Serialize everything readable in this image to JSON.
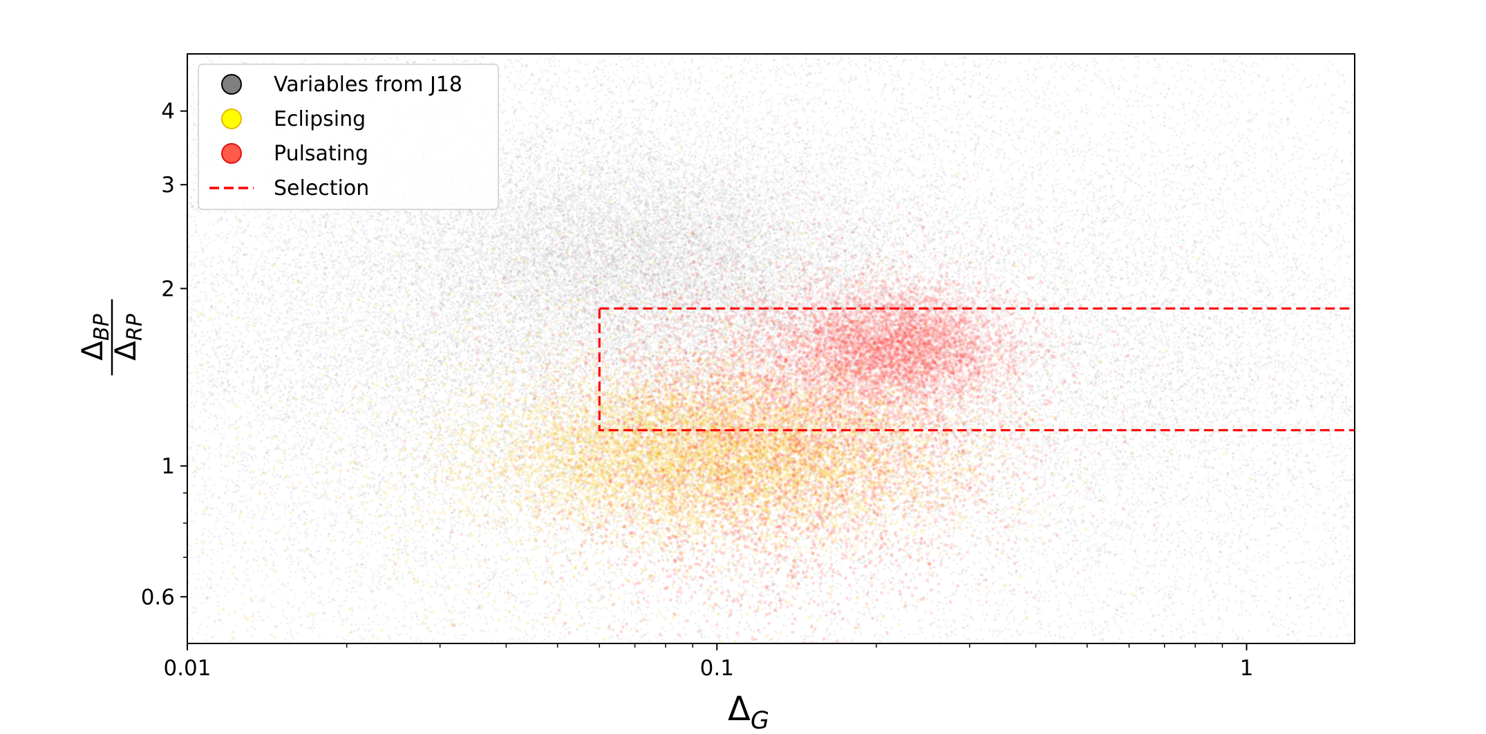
{
  "chart_data": {
    "type": "scatter",
    "title": "",
    "x_scale": "log",
    "y_scale": "log",
    "xlim": [
      0.01,
      1.6
    ],
    "ylim": [
      0.5,
      5.0
    ],
    "x_ticks": [
      {
        "value": 0.01,
        "label": "0.01"
      },
      {
        "value": 0.1,
        "label": "0.1"
      },
      {
        "value": 1,
        "label": "1"
      }
    ],
    "y_ticks": [
      {
        "value": 0.6,
        "label": "0.6"
      },
      {
        "value": 1,
        "label": "1"
      },
      {
        "value": 2,
        "label": "2"
      },
      {
        "value": 3,
        "label": "3"
      },
      {
        "value": 4,
        "label": "4"
      }
    ],
    "axis_labels": {
      "x_base": "Δ",
      "x_sub": "G",
      "y_num_base": "Δ",
      "y_num_sub": "BP",
      "y_den_base": "Δ",
      "y_den_sub": "RP"
    },
    "legend_position": "top-left",
    "legend": [
      {
        "label": "Variables from J18",
        "kind": "marker",
        "color": "#7f7f7f",
        "edge": "#000000"
      },
      {
        "label": "Eclipsing",
        "kind": "marker",
        "color": "#ffff00",
        "edge": "#e6b800"
      },
      {
        "label": "Pulsating",
        "kind": "marker",
        "color": "#ff5a4a",
        "edge": "#e01010"
      },
      {
        "label": "Selection",
        "kind": "dashed-line",
        "color": "#ff0000"
      }
    ],
    "selection_box": {
      "x_min": 0.06,
      "x_max": 1.6,
      "y_min": 1.15,
      "y_max": 1.85,
      "color": "#ff0000"
    },
    "series": [
      {
        "name": "Variables from J18",
        "color": "#555555",
        "clusters": [
          {
            "x": 0.075,
            "y": 2.3,
            "sx": 0.25,
            "sy": 0.1,
            "n": 16000,
            "weight": 0.55
          },
          {
            "x": 0.05,
            "y": 1.7,
            "sx": 0.45,
            "sy": 0.22,
            "n": 20000,
            "weight": 0.75
          },
          {
            "x": 0.6,
            "y": 1.5,
            "sx": 0.3,
            "sy": 0.18,
            "n": 7000,
            "weight": 0.7
          },
          {
            "x": 0.15,
            "y": 1.4,
            "sx": 0.7,
            "sy": 0.35,
            "n": 9000,
            "weight": 1.0
          }
        ]
      },
      {
        "name": "Eclipsing",
        "color": "#f5c400",
        "clusters": [
          {
            "x": 0.1,
            "y": 1.05,
            "sx": 0.22,
            "sy": 0.07,
            "n": 9000,
            "weight": 0.8
          },
          {
            "x": 0.06,
            "y": 1.0,
            "sx": 0.4,
            "sy": 0.2,
            "n": 1200,
            "weight": 1.0
          }
        ]
      },
      {
        "name": "Pulsating",
        "color": "#ff2020",
        "clusters": [
          {
            "x": 0.22,
            "y": 1.6,
            "sx": 0.11,
            "sy": 0.05,
            "n": 5000,
            "weight": 0.6
          },
          {
            "x": 0.14,
            "y": 1.25,
            "sx": 0.22,
            "sy": 0.13,
            "n": 4500,
            "weight": 0.8
          },
          {
            "x": 0.12,
            "y": 0.9,
            "sx": 0.22,
            "sy": 0.12,
            "n": 1000,
            "weight": 1.0
          }
        ]
      }
    ]
  }
}
